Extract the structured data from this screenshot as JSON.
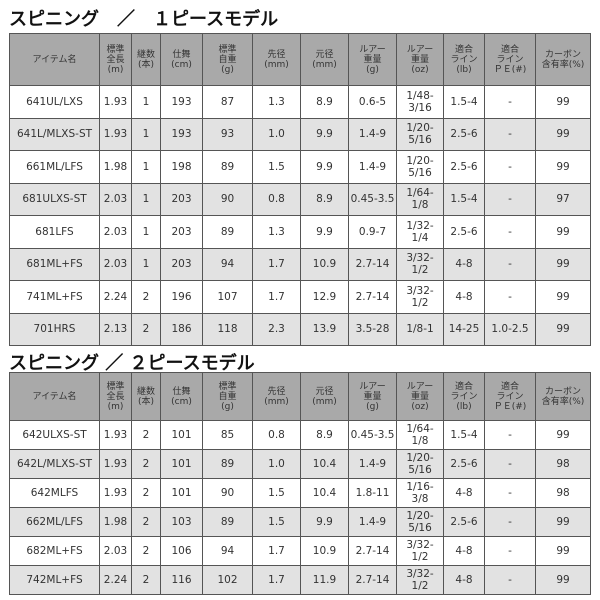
{
  "columns": [
    "アイテム名",
    "標準\n全長\n(m)",
    "継数\n(本)",
    "仕舞\n(cm)",
    "標準\n自重\n(g)",
    "先径\n(mm)",
    "元径\n(mm)",
    "ルアー\n重量\n(g)",
    "ルアー\n重量\n(oz)",
    "適合\nライン\n(lb)",
    "適合\nライン\nＰＥ(#)",
    "カーボン\n含有率(%)"
  ],
  "tables": [
    {
      "title": "スピニング　／　１ピースモデル",
      "rows": [
        [
          "641UL/LXS",
          "1.93",
          "1",
          "193",
          "87",
          "1.3",
          "8.9",
          "0.6-5",
          "1/48-\n3/16",
          "1.5-4",
          "-",
          "99"
        ],
        [
          "641L/MLXS-ST",
          "1.93",
          "1",
          "193",
          "93",
          "1.0",
          "9.9",
          "1.4-9",
          "1/20-\n5/16",
          "2.5-6",
          "-",
          "99"
        ],
        [
          "661ML/LFS",
          "1.98",
          "1",
          "198",
          "89",
          "1.5",
          "9.9",
          "1.4-9",
          "1/20-\n5/16",
          "2.5-6",
          "-",
          "99"
        ],
        [
          "681ULXS-ST",
          "2.03",
          "1",
          "203",
          "90",
          "0.8",
          "8.9",
          "0.45-3.5",
          "1/64-\n1/8",
          "1.5-4",
          "-",
          "97"
        ],
        [
          "681LFS",
          "2.03",
          "1",
          "203",
          "89",
          "1.3",
          "9.9",
          "0.9-7",
          "1/32-\n1/4",
          "2.5-6",
          "-",
          "99"
        ],
        [
          "681ML+FS",
          "2.03",
          "1",
          "203",
          "94",
          "1.7",
          "10.9",
          "2.7-14",
          "3/32-\n1/2",
          "4-8",
          "-",
          "99"
        ],
        [
          "741ML+FS",
          "2.24",
          "2",
          "196",
          "107",
          "1.7",
          "12.9",
          "2.7-14",
          "3/32-\n1/2",
          "4-8",
          "-",
          "99"
        ],
        [
          "701HRS",
          "2.13",
          "2",
          "186",
          "118",
          "2.3",
          "13.9",
          "3.5-28",
          "1/8-1",
          "14-25",
          "1.0-2.5",
          "99"
        ]
      ]
    },
    {
      "title": "スピニング ／ ２ピースモデル",
      "rows": [
        [
          "642ULXS-ST",
          "1.93",
          "2",
          "101",
          "85",
          "0.8",
          "8.9",
          "0.45-3.5",
          "1/64-\n1/8",
          "1.5-4",
          "-",
          "99"
        ],
        [
          "642L/MLXS-ST",
          "1.93",
          "2",
          "101",
          "89",
          "1.0",
          "10.4",
          "1.4-9",
          "1/20-\n5/16",
          "2.5-6",
          "-",
          "98"
        ],
        [
          "642MLFS",
          "1.93",
          "2",
          "101",
          "90",
          "1.5",
          "10.4",
          "1.8-11",
          "1/16-\n3/8",
          "4-8",
          "-",
          "98"
        ],
        [
          "662ML/LFS",
          "1.98",
          "2",
          "103",
          "89",
          "1.5",
          "9.9",
          "1.4-9",
          "1/20-\n5/16",
          "2.5-6",
          "-",
          "99"
        ],
        [
          "682ML+FS",
          "2.03",
          "2",
          "106",
          "94",
          "1.7",
          "10.9",
          "2.7-14",
          "3/32-\n1/2",
          "4-8",
          "-",
          "99"
        ],
        [
          "742ML+FS",
          "2.24",
          "2",
          "116",
          "102",
          "1.7",
          "11.9",
          "2.7-14",
          "3/32-\n1/2",
          "4-8",
          "-",
          "99"
        ]
      ]
    }
  ]
}
